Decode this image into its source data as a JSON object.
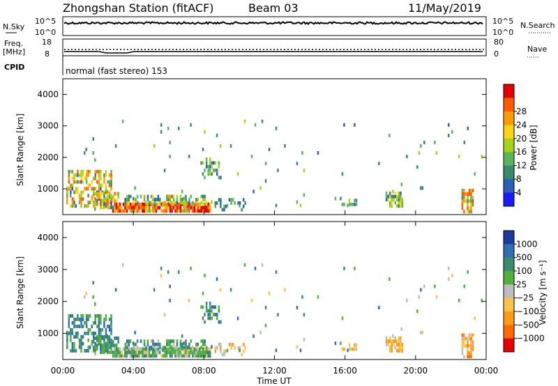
{
  "header": {
    "station": "Zhongshan Station (fitACF)",
    "beam": "Beam 03",
    "date": "11/May/2019"
  },
  "summary": {
    "nsky_label": "N.Sky",
    "nsky_ticks": [
      "10^5",
      "10^0"
    ],
    "nsearch_label": "N.Search",
    "nsearch_ticks": [
      "10^5",
      "10^0"
    ],
    "freq_label_1": "Freq.",
    "freq_label_2": "[MHz]",
    "freq_ticks": [
      "18",
      "8"
    ],
    "nave_label": "Nave",
    "nave_ticks": [
      "80",
      "0"
    ],
    "cpid_label": "CPID",
    "cpid_text": "normal (fast stereo) 153"
  },
  "chart_data": [
    {
      "type": "heatmap",
      "ylabel": "Slant Range [km]",
      "yticks": [
        "1000",
        "2000",
        "3000",
        "4000"
      ],
      "ylim": [
        180,
        4500
      ],
      "xlim_hours": [
        0,
        24
      ],
      "colorbar_label": "Power [dB]",
      "colorbar_ticks": [
        "4",
        "8",
        "12",
        "16",
        "20",
        "24",
        "28"
      ],
      "colorbar_colors": [
        "#1a1aff",
        "#2c5fb5",
        "#3a8a6e",
        "#5bb35b",
        "#a8d21a",
        "#ffd21a",
        "#ff9a00",
        "#ff5a00",
        "#e60000"
      ]
    },
    {
      "type": "heatmap",
      "ylabel": "Slant Range [km]",
      "yticks": [
        "1000",
        "2000",
        "3000",
        "4000"
      ],
      "ylim": [
        180,
        4500
      ],
      "xlim_hours": [
        0,
        24
      ],
      "colorbar_label": "Velocity [m s⁻¹]",
      "colorbar_ticks": [
        "1000",
        "500",
        "100",
        "25",
        "−25",
        "−100",
        "−500",
        "−1000"
      ],
      "colorbar_colors": [
        "#1a3aa0",
        "#2d6fb0",
        "#3a8a6e",
        "#4fb03a",
        "#bdbdbd",
        "#ffc24a",
        "#ff9a1a",
        "#ff6a00",
        "#e60000"
      ]
    }
  ],
  "xaxis": {
    "label": "Time UT",
    "ticks": [
      "00:00",
      "04:00",
      "08:00",
      "12:00",
      "16:00",
      "20:00",
      "00:00"
    ]
  }
}
